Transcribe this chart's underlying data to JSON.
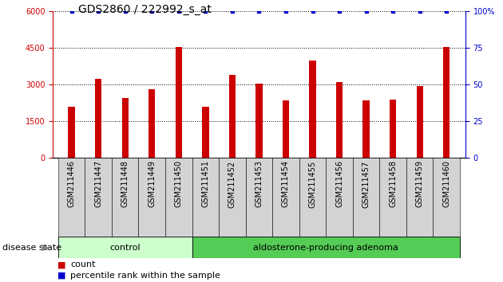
{
  "title": "GDS2860 / 222992_s_at",
  "samples": [
    "GSM211446",
    "GSM211447",
    "GSM211448",
    "GSM211449",
    "GSM211450",
    "GSM211451",
    "GSM211452",
    "GSM211453",
    "GSM211454",
    "GSM211455",
    "GSM211456",
    "GSM211457",
    "GSM211458",
    "GSM211459",
    "GSM211460"
  ],
  "counts": [
    2100,
    3250,
    2450,
    2800,
    4550,
    2100,
    3400,
    3050,
    2350,
    4000,
    3100,
    2350,
    2400,
    2950,
    4550
  ],
  "percentile": [
    100,
    100,
    100,
    100,
    100,
    100,
    100,
    100,
    100,
    100,
    100,
    100,
    100,
    100,
    100
  ],
  "ylim_left": [
    0,
    6000
  ],
  "ylim_right": [
    0,
    100
  ],
  "yticks_left": [
    0,
    1500,
    3000,
    4500,
    6000
  ],
  "yticks_right": [
    0,
    25,
    50,
    75,
    100
  ],
  "bar_color": "#cc0000",
  "dot_color": "#0000cc",
  "group_labels": [
    "control",
    "aldosterone-producing adenoma"
  ],
  "group_ranges": [
    [
      0,
      4
    ],
    [
      5,
      14
    ]
  ],
  "group_colors": [
    "#ccffcc",
    "#55cc55"
  ],
  "disease_state_label": "disease state",
  "legend_count_label": "count",
  "legend_percentile_label": "percentile rank within the sample",
  "title_fontsize": 10,
  "axis_fontsize": 7,
  "tick_fontsize": 7,
  "label_fontsize": 8,
  "group_label_fontsize": 8
}
